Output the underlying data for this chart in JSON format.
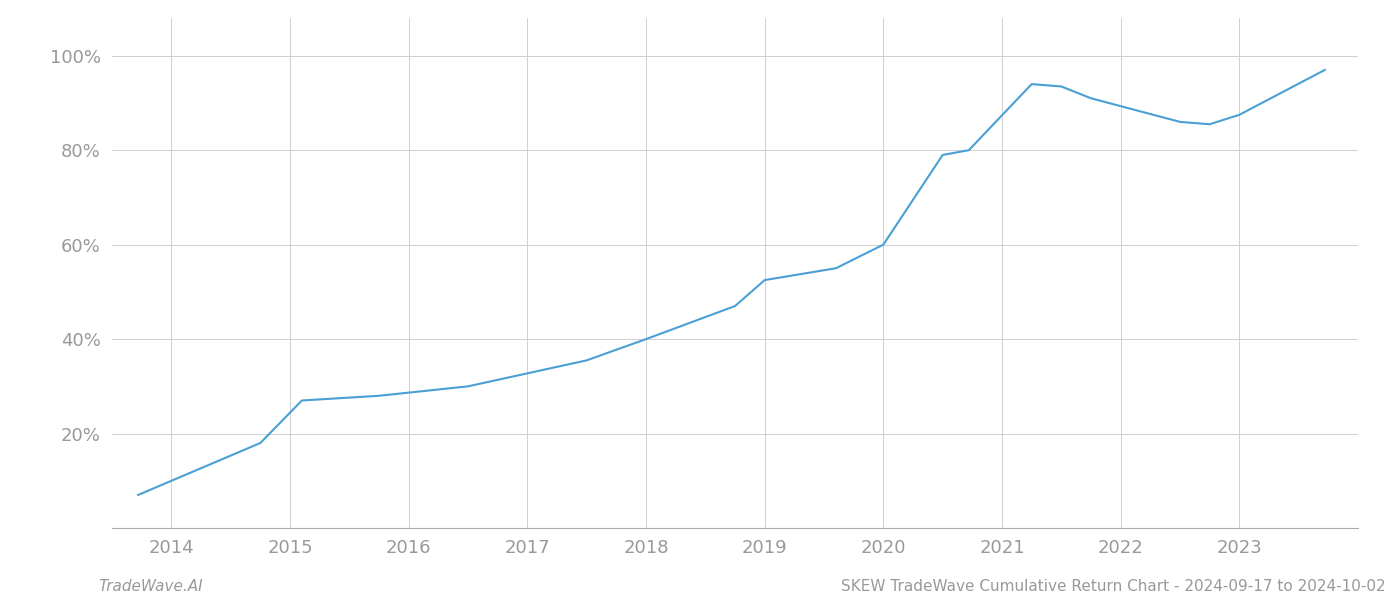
{
  "x_values": [
    2013.72,
    2014.75,
    2015.1,
    2015.75,
    2016.5,
    2017.5,
    2018.0,
    2018.75,
    2019.0,
    2019.6,
    2020.0,
    2020.5,
    2020.72,
    2021.25,
    2021.5,
    2021.75,
    2022.5,
    2022.75,
    2023.0,
    2023.72
  ],
  "y_values": [
    7.0,
    18.0,
    27.0,
    28.0,
    30.0,
    35.5,
    40.0,
    47.0,
    52.5,
    55.0,
    60.0,
    79.0,
    80.0,
    94.0,
    93.5,
    91.0,
    86.0,
    85.5,
    87.5,
    97.0
  ],
  "line_color": "#4a9fd4",
  "line_width": 1.5,
  "background_color": "#ffffff",
  "grid_color": "#d0d0d0",
  "footer_left": "TradeWave.AI",
  "footer_right": "SKEW TradeWave Cumulative Return Chart - 2024-09-17 to 2024-10-02",
  "x_ticks": [
    2014,
    2015,
    2016,
    2017,
    2018,
    2019,
    2020,
    2021,
    2022,
    2023
  ],
  "y_ticks": [
    20,
    40,
    60,
    80,
    100
  ],
  "y_tick_labels": [
    "20%",
    "40%",
    "60%",
    "80%",
    "100%"
  ],
  "xlim": [
    2013.5,
    2024.0
  ],
  "ylim": [
    0,
    108
  ],
  "tick_color": "#999999",
  "footer_fontsize": 11,
  "tick_fontsize": 13
}
